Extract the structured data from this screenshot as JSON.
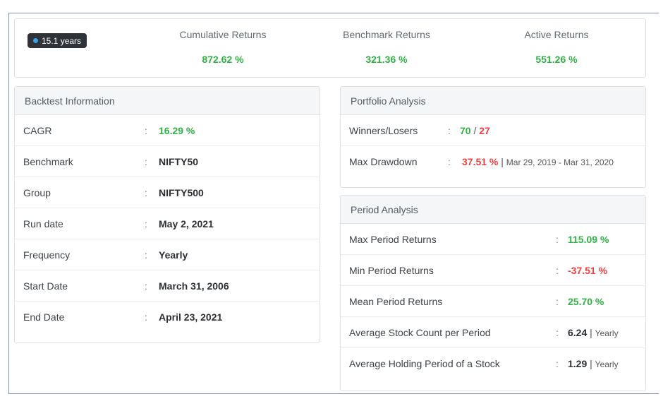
{
  "summary": {
    "duration_badge": "15.1 years",
    "cumulative": {
      "label": "Cumulative Returns",
      "value": "872.62 %"
    },
    "benchmark": {
      "label": "Benchmark Returns",
      "value": "321.36 %"
    },
    "active": {
      "label": "Active Returns",
      "value": "551.26 %"
    }
  },
  "backtest": {
    "title": "Backtest Information",
    "colon": ":",
    "rows": [
      {
        "key": "CAGR",
        "value": "16.29 %"
      },
      {
        "key": "Benchmark",
        "value": "NIFTY50"
      },
      {
        "key": "Group",
        "value": "NIFTY500"
      },
      {
        "key": "Run date",
        "value": "May 2, 2021"
      },
      {
        "key": "Frequency",
        "value": "Yearly"
      },
      {
        "key": "Start Date",
        "value": "March 31, 2006"
      },
      {
        "key": "End Date",
        "value": "April 23, 2021"
      }
    ]
  },
  "portfolio": {
    "title": "Portfolio Analysis",
    "winners_losers": {
      "key": "Winners/Losers",
      "winners": "70",
      "slash": "/",
      "losers": "27"
    },
    "max_drawdown": {
      "key": "Max Drawdown",
      "value": "37.51 %",
      "divider": "|",
      "range": "Mar 29, 2019 - Mar 31, 2020"
    }
  },
  "period": {
    "title": "Period Analysis",
    "rows": [
      {
        "key": "Max Period Returns",
        "value": "115.09 %"
      },
      {
        "key": "Min Period Returns",
        "value": "-37.51 %"
      },
      {
        "key": "Mean Period Returns",
        "value": "25.70 %"
      },
      {
        "key": "Average Stock Count per Period",
        "value": "6.24",
        "divider": "|",
        "unit": "Yearly"
      },
      {
        "key": "Average Holding Period of a Stock",
        "value": "1.29",
        "divider": "|",
        "unit": "Yearly"
      }
    ]
  },
  "colors": {
    "positive": "#2fb344",
    "negative": "#f03d3e",
    "badge_dot": "#3aa0e6"
  }
}
